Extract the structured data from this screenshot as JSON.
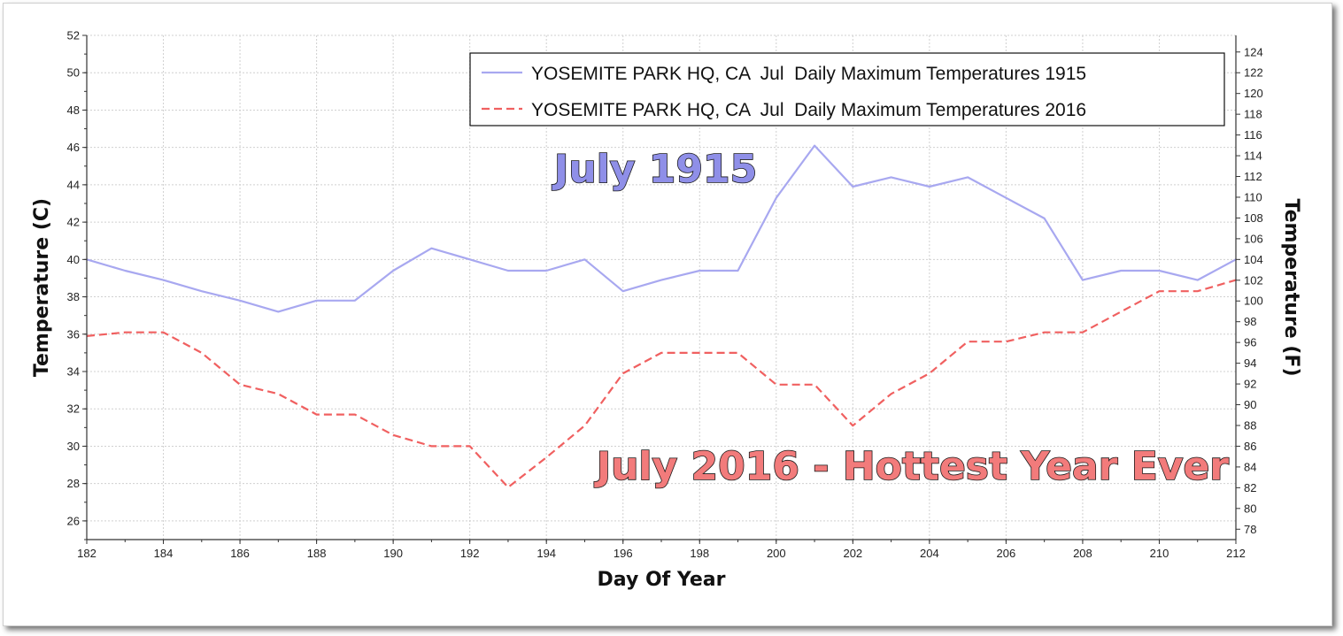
{
  "chart_data": {
    "type": "line",
    "xlabel": "Day Of Year",
    "ylabel": "Temperature (C)",
    "y2label": "Temperature (F)",
    "xlim": [
      182,
      212
    ],
    "ylim": [
      25,
      52
    ],
    "y2lim": [
      77,
      125.6
    ],
    "x_ticks": [
      182,
      184,
      186,
      188,
      190,
      192,
      194,
      196,
      198,
      200,
      202,
      204,
      206,
      208,
      210,
      212
    ],
    "y_ticks": [
      26,
      28,
      30,
      32,
      34,
      36,
      38,
      40,
      42,
      44,
      46,
      48,
      50,
      52
    ],
    "y2_ticks": [
      78,
      80,
      82,
      84,
      86,
      88,
      90,
      92,
      94,
      96,
      98,
      100,
      102,
      104,
      106,
      108,
      110,
      112,
      114,
      116,
      118,
      120,
      122,
      124
    ],
    "grid": true,
    "legend_position": "top-right",
    "x": [
      182,
      183,
      184,
      185,
      186,
      187,
      188,
      189,
      190,
      191,
      192,
      193,
      194,
      195,
      196,
      197,
      198,
      199,
      200,
      201,
      202,
      203,
      204,
      205,
      206,
      207,
      208,
      209,
      210,
      211,
      212
    ],
    "series": [
      {
        "name": "YOSEMITE PARK HQ, CA  Jul  Daily Maximum Temperatures 1915",
        "color": "#a8a8f0",
        "style": "solid",
        "values": [
          40.0,
          39.4,
          38.9,
          38.3,
          37.8,
          37.2,
          37.8,
          37.8,
          39.4,
          40.6,
          40.0,
          39.4,
          39.4,
          40.0,
          38.3,
          38.9,
          39.4,
          39.4,
          43.3,
          46.1,
          43.9,
          44.4,
          43.9,
          44.4,
          43.3,
          42.2,
          38.9,
          39.4,
          39.4,
          38.9,
          40.0
        ]
      },
      {
        "name": "YOSEMITE PARK HQ, CA  Jul  Daily Maximum Temperatures 2016",
        "color": "#f06060",
        "style": "dashed",
        "values": [
          35.9,
          36.1,
          36.1,
          35.0,
          33.3,
          32.8,
          31.7,
          31.7,
          30.6,
          30.0,
          30.0,
          27.8,
          29.4,
          31.1,
          33.9,
          35.0,
          35.0,
          35.0,
          33.3,
          33.3,
          31.1,
          32.8,
          33.9,
          35.6,
          35.6,
          36.1,
          36.1,
          37.2,
          38.3,
          38.3,
          38.9
        ]
      }
    ],
    "annotations": [
      {
        "text": "July 1915",
        "color": "#8f8fe8"
      },
      {
        "text": "July 2016 - Hottest Year Ever",
        "color": "#f27b7b"
      }
    ]
  }
}
